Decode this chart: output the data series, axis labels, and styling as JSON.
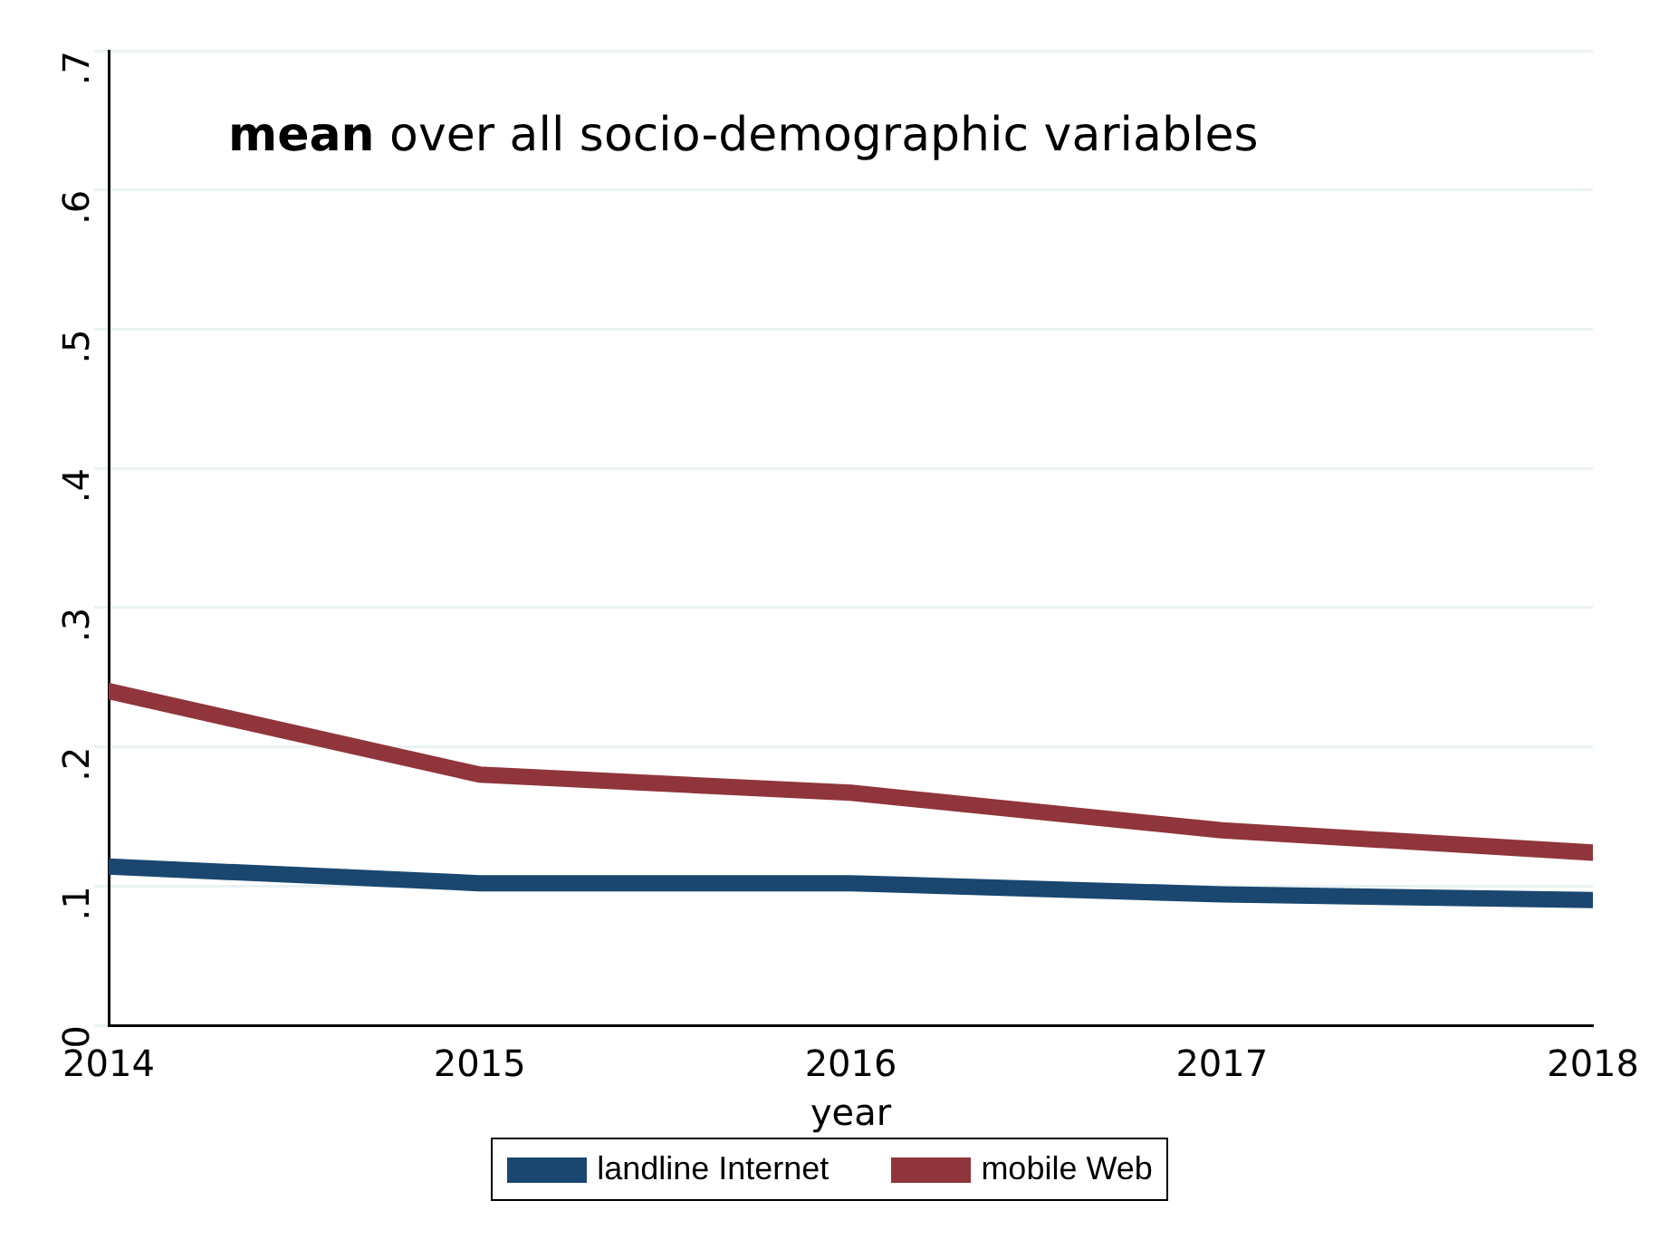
{
  "chart_data": {
    "type": "line",
    "title": "mean over all socio-demographic variables",
    "xlabel": "year",
    "x": [
      2014,
      2015,
      2016,
      2017,
      2018
    ],
    "series": [
      {
        "name": "landline Internet",
        "color": "#1a476f",
        "values": [
          0.114,
          0.102,
          0.102,
          0.094,
          0.09
        ]
      },
      {
        "name": "mobile Web",
        "color": "#90353b",
        "values": [
          0.24,
          0.18,
          0.167,
          0.14,
          0.124
        ]
      }
    ],
    "xlim": [
      2014,
      2018
    ],
    "xticks": [
      2014,
      2015,
      2016,
      2017,
      2018
    ],
    "ylim": [
      0,
      0.7
    ],
    "yticks": [
      0,
      {
        "value": 0.1,
        "label": ".1"
      },
      {
        "value": 0.2,
        "label": ".2"
      },
      {
        "value": 0.3,
        "label": ".3"
      },
      {
        "value": 0.4,
        "label": ".4"
      },
      {
        "value": 0.5,
        "label": ".5"
      },
      {
        "value": 0.6,
        "label": ".6"
      },
      {
        "value": 0.7,
        "label": ".7"
      }
    ],
    "grid": "y",
    "legend": "bottom",
    "marker": "none",
    "line_style": "solid"
  }
}
